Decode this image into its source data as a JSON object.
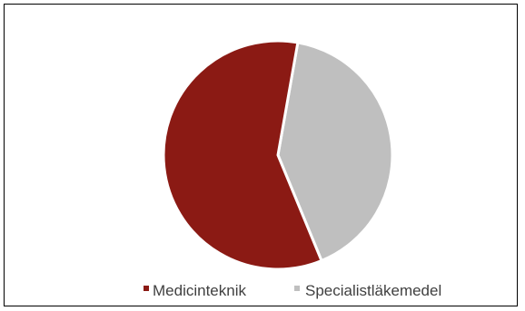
{
  "chart_data": {
    "type": "pie",
    "title": "",
    "slices": [
      {
        "label": "Medicinteknik",
        "value": 59,
        "color": "#8B1A14"
      },
      {
        "label": "Specialistläkemedel",
        "value": 41,
        "color": "#BFBFBF"
      }
    ],
    "start_angle_deg": 10,
    "direction": "clockwise",
    "legend_position": "bottom"
  }
}
